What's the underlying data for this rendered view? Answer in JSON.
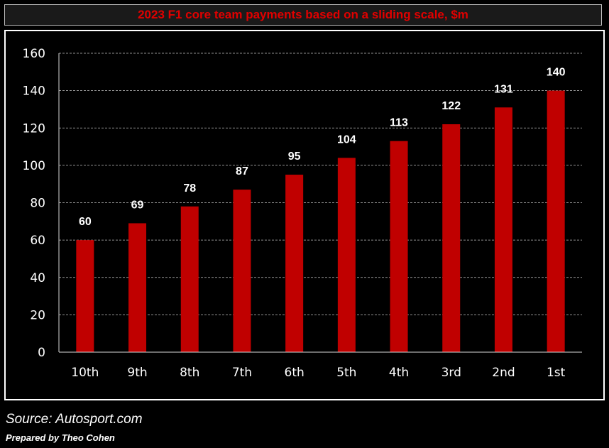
{
  "chart_data": {
    "type": "bar",
    "title": "2023 F1 core team payments based on a sliding scale, $m",
    "categories": [
      "10th",
      "9th",
      "8th",
      "7th",
      "6th",
      "5th",
      "4th",
      "3rd",
      "2nd",
      "1st"
    ],
    "values": [
      60,
      69,
      78,
      87,
      95,
      104,
      113,
      122,
      131,
      140
    ],
    "ylim": [
      0,
      160
    ],
    "yticks": [
      0,
      20,
      40,
      60,
      80,
      100,
      120,
      140,
      160
    ],
    "xlabel": "",
    "ylabel": "",
    "grid": true,
    "grid_style": "dashed",
    "data_labels": true,
    "colors": {
      "bar": "#c00000",
      "background": "#000000",
      "text": "#ffffff",
      "title": "#e00000",
      "grid": "#ffffff"
    }
  },
  "footer": {
    "source": "Source: Autosport.com",
    "credit": "Prepared by Theo Cohen"
  }
}
